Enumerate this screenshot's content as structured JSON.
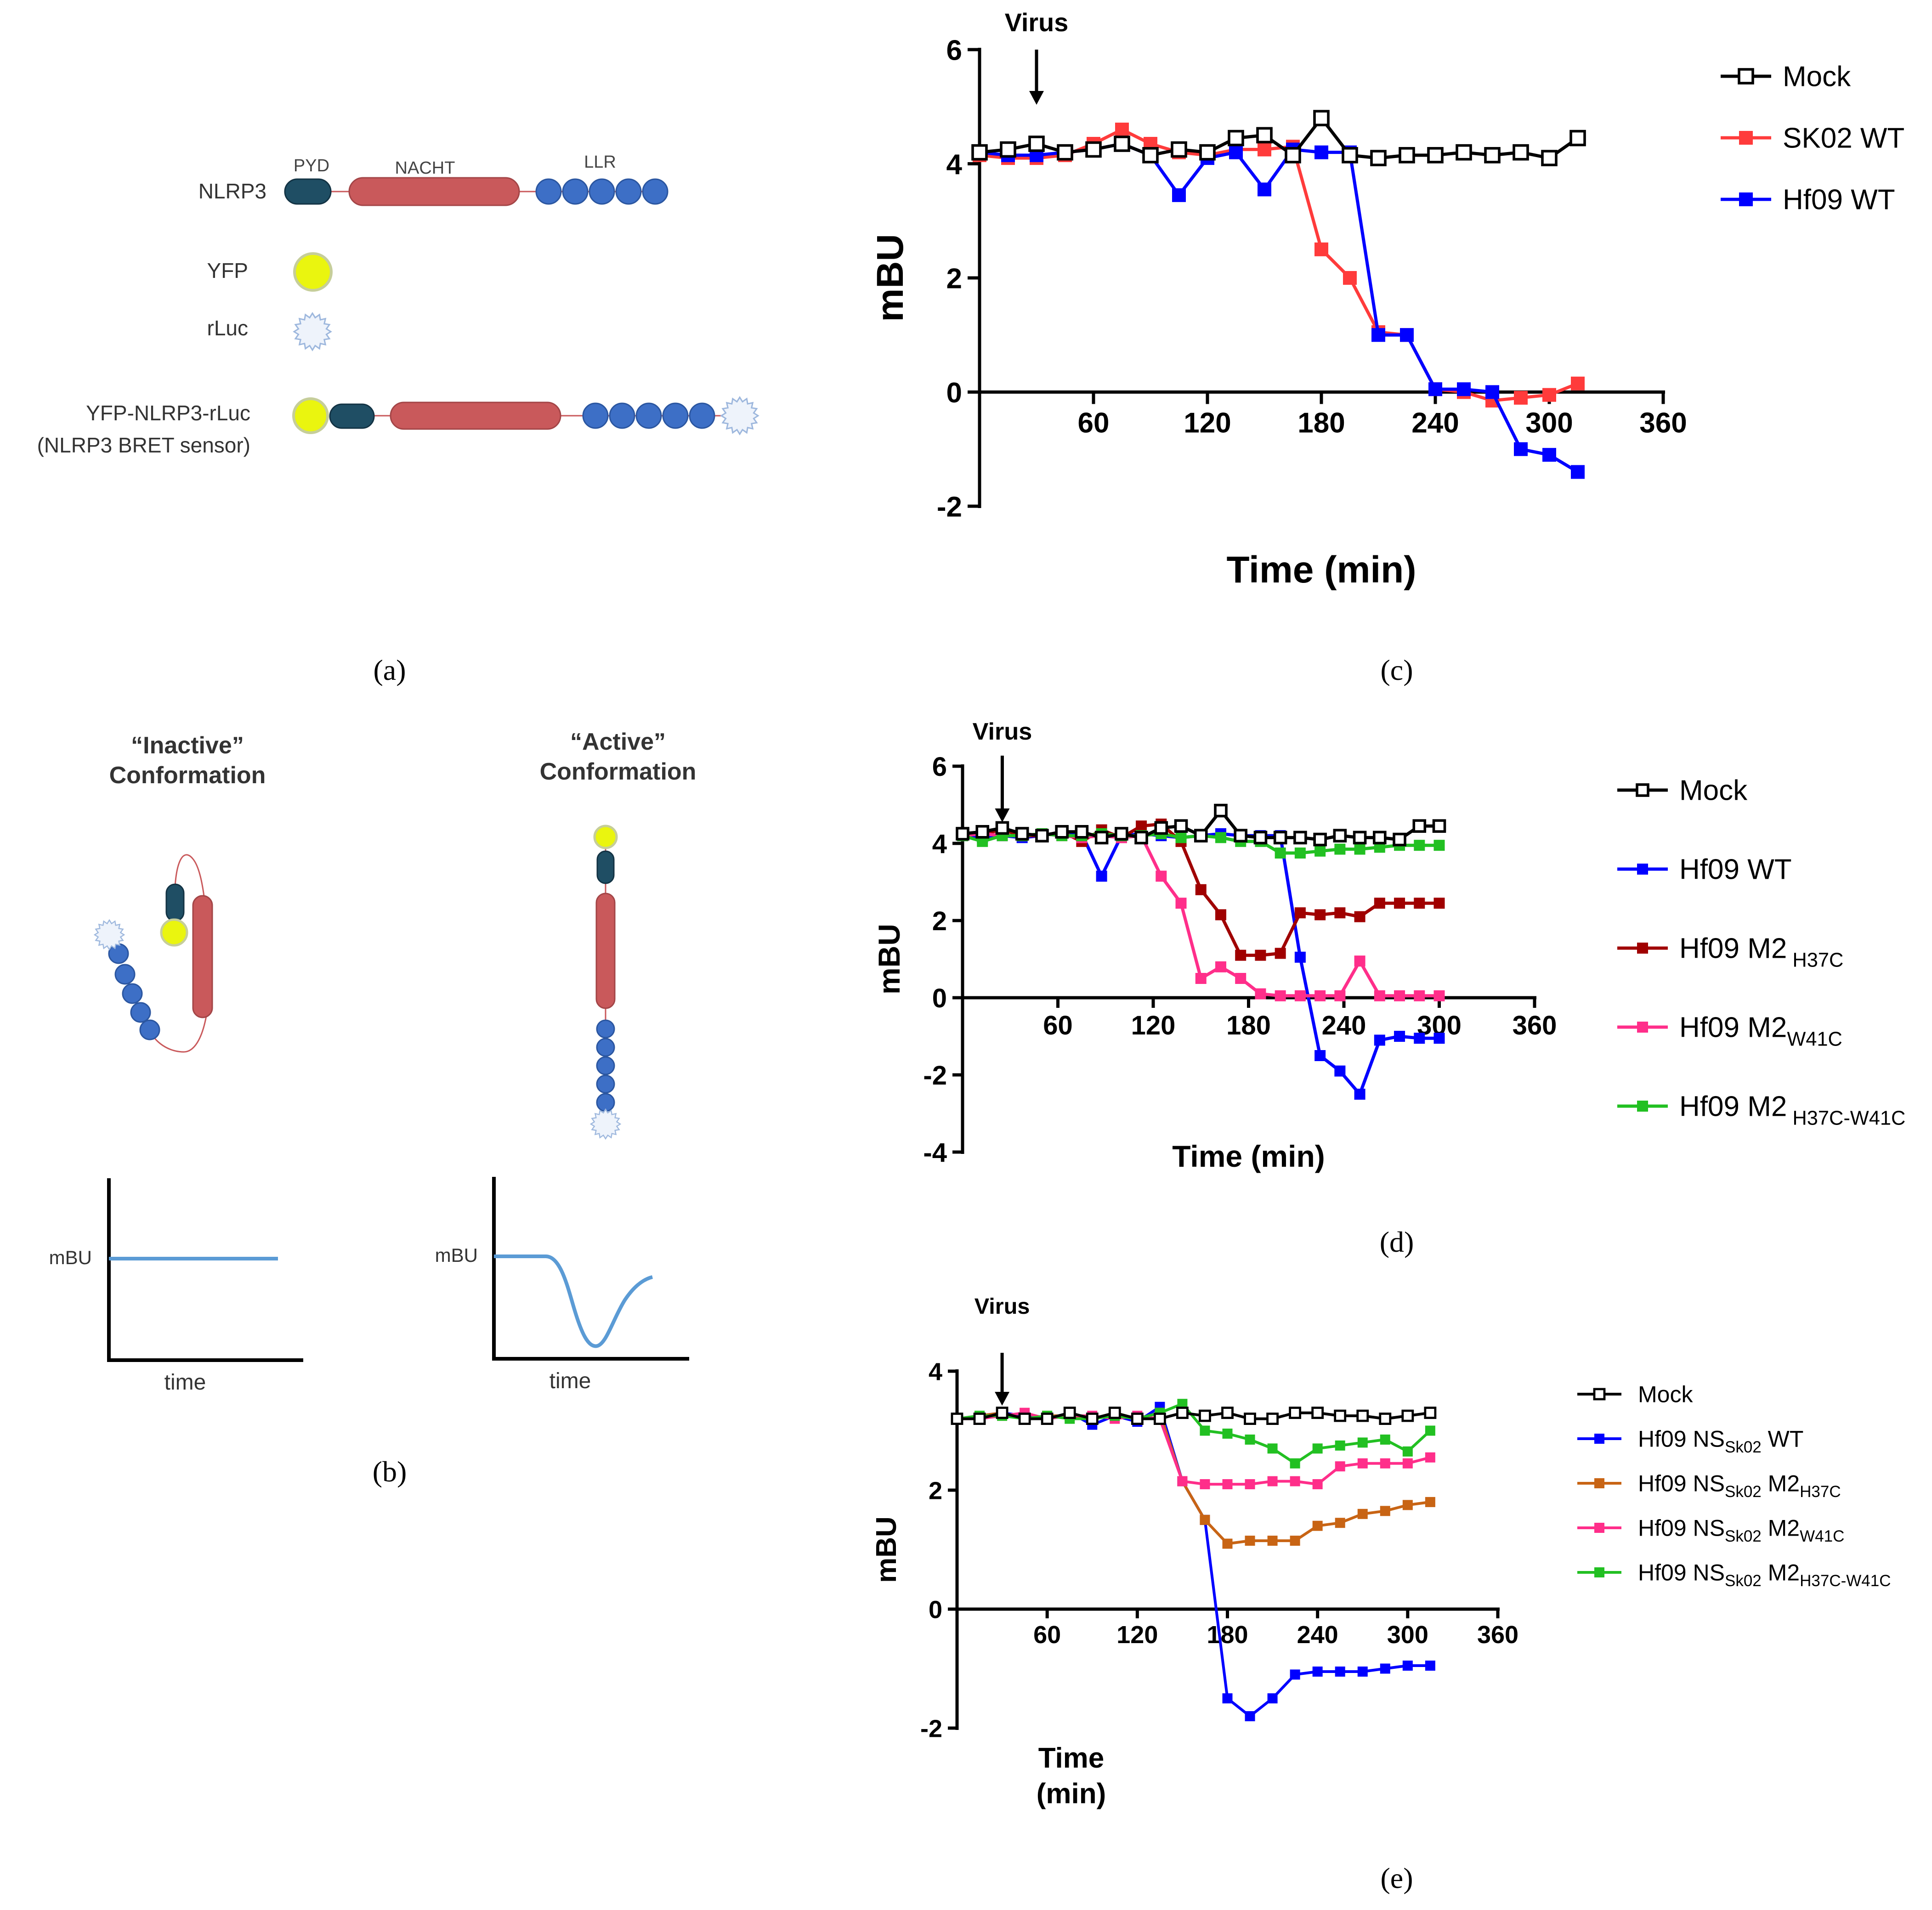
{
  "panels": {
    "a": {
      "caption": "(a)",
      "domain_labels": [
        "PYD",
        "NACHT",
        "LLR"
      ],
      "rows": [
        "NLRP3",
        "YFP",
        "rLuc",
        "YFP-NLRP3-rLuc",
        "(NLRP3 BRET sensor)"
      ],
      "colors": {
        "pyd": "#1f4e64",
        "nacht": "#c9595b",
        "llr": "#3d6fc6",
        "yfp": "#eaf50f",
        "rluc": "#c9d8ee"
      }
    },
    "b": {
      "caption": "(b)",
      "inactive_title": [
        "“Inactive”",
        "Conformation"
      ],
      "active_title": [
        "“Active”",
        "Conformation"
      ],
      "inset_ylabel": "mBU",
      "inset_xlabel": "time",
      "trace_color": "#5b9bd5"
    }
  },
  "chart_data": [
    {
      "id": "c",
      "type": "line",
      "caption": "(c)",
      "annotation": "Virus",
      "annotation_x": 30,
      "xlabel": "Time (min)",
      "ylabel": "mBU",
      "xlim": [
        0,
        360
      ],
      "ylim": [
        -2,
        6
      ],
      "xticks": [
        60,
        120,
        180,
        240,
        300,
        360
      ],
      "yticks": [
        -2,
        0,
        2,
        4,
        6
      ],
      "x": [
        0,
        15,
        30,
        45,
        60,
        75,
        90,
        105,
        120,
        135,
        150,
        165,
        180,
        195,
        210,
        225,
        240,
        255,
        270,
        285,
        300,
        315
      ],
      "series": [
        {
          "name": "Mock",
          "color": "#000000",
          "marker": "open",
          "values": [
            4.2,
            4.25,
            4.35,
            4.2,
            4.25,
            4.35,
            4.15,
            4.25,
            4.2,
            4.45,
            4.5,
            4.15,
            4.8,
            4.15,
            4.1,
            4.15,
            4.15,
            4.2,
            4.15,
            4.2,
            4.1,
            4.45
          ]
        },
        {
          "name": "SK02 WT",
          "color": "#ff3b3b",
          "marker": "filled",
          "values": [
            4.15,
            4.1,
            4.1,
            4.15,
            4.35,
            4.6,
            4.35,
            4.2,
            4.15,
            4.25,
            4.25,
            4.3,
            2.5,
            2.0,
            1.05,
            1.0,
            0.05,
            0.0,
            -0.15,
            -0.1,
            -0.05,
            0.15
          ]
        },
        {
          "name": "Hf09 WT",
          "color": "#0000ff",
          "marker": "filled",
          "values": [
            4.2,
            4.15,
            4.15,
            4.2,
            4.25,
            4.35,
            4.15,
            3.45,
            4.1,
            4.2,
            3.55,
            4.25,
            4.2,
            4.2,
            1.0,
            1.0,
            0.05,
            0.05,
            0.0,
            -1.0,
            -1.1,
            -1.4
          ]
        }
      ]
    },
    {
      "id": "d",
      "type": "line",
      "caption": "(d)",
      "annotation": "Virus",
      "annotation_x": 25,
      "xlabel": "Time (min)",
      "ylabel": "mBU",
      "xlim": [
        0,
        360
      ],
      "ylim": [
        -4,
        6
      ],
      "xticks": [
        60,
        120,
        180,
        240,
        300,
        360
      ],
      "yticks": [
        -4,
        -2,
        0,
        2,
        4,
        6
      ],
      "x": [
        0,
        12.5,
        25,
        37.5,
        50,
        62.5,
        75,
        87.5,
        100,
        112.5,
        125,
        137.5,
        150,
        162.5,
        175,
        187.5,
        200,
        212.5,
        225,
        237.5,
        250,
        262.5,
        275,
        287.5,
        300
      ],
      "series": [
        {
          "name": "Mock",
          "color": "#000000",
          "marker": "open",
          "values": [
            4.25,
            4.3,
            4.4,
            4.25,
            4.2,
            4.3,
            4.3,
            4.15,
            4.25,
            4.15,
            4.4,
            4.45,
            4.2,
            4.85,
            4.2,
            4.15,
            4.15,
            4.15,
            4.1,
            4.2,
            4.15,
            4.15,
            4.1,
            4.45,
            4.45
          ]
        },
        {
          "name": "Hf09 WT",
          "color": "#0000ff",
          "marker": "filled",
          "values": [
            4.2,
            4.15,
            4.2,
            4.15,
            4.2,
            4.3,
            4.25,
            3.15,
            4.2,
            4.25,
            4.2,
            4.15,
            4.2,
            4.25,
            4.2,
            4.2,
            4.2,
            1.05,
            -1.5,
            -1.9,
            -2.5,
            -1.1,
            -1.0,
            -1.05,
            -1.05
          ]
        },
        {
          "name": "Hf09 M2 H37C",
          "name_main": "Hf09 M2",
          "name_sub": " H37C",
          "color": "#a00000",
          "marker": "filled",
          "values": [
            4.25,
            4.25,
            4.35,
            4.2,
            4.2,
            4.3,
            4.05,
            4.35,
            4.15,
            4.45,
            4.5,
            4.05,
            2.8,
            2.15,
            1.1,
            1.1,
            1.15,
            2.2,
            2.15,
            2.2,
            2.1,
            2.45,
            2.45,
            2.45,
            2.45
          ]
        },
        {
          "name": "Hf09 M2W41C",
          "name_main": "Hf09 M2",
          "name_sub": "W41C",
          "color": "#ff2e8a",
          "marker": "filled",
          "values": [
            4.2,
            4.25,
            4.2,
            4.2,
            4.25,
            4.2,
            4.15,
            4.2,
            4.15,
            4.2,
            3.15,
            2.45,
            0.5,
            0.8,
            0.5,
            0.1,
            0.05,
            0.05,
            0.05,
            0.05,
            0.95,
            0.05,
            0.05,
            0.05,
            0.05
          ]
        },
        {
          "name": "Hf09 M2 H37C-W41C",
          "name_main": "Hf09 M2",
          "name_sub": " H37C-W41C",
          "color": "#22c022",
          "marker": "filled",
          "values": [
            4.2,
            4.05,
            4.2,
            4.2,
            4.25,
            4.2,
            4.2,
            4.25,
            4.2,
            4.2,
            4.25,
            4.15,
            4.2,
            4.15,
            4.05,
            4.05,
            3.75,
            3.75,
            3.8,
            3.85,
            3.85,
            3.9,
            3.95,
            3.95,
            3.95
          ]
        }
      ]
    },
    {
      "id": "e",
      "type": "line",
      "caption": "(e)",
      "annotation": "Virus",
      "annotation_x": 30,
      "xlabel": [
        "Time",
        "(min)"
      ],
      "ylabel": "mBU",
      "xlim": [
        0,
        360
      ],
      "ylim": [
        -2,
        4
      ],
      "xticks": [
        60,
        120,
        180,
        240,
        300,
        360
      ],
      "yticks": [
        -2,
        0,
        2,
        4
      ],
      "x": [
        0,
        15,
        30,
        45,
        60,
        75,
        90,
        105,
        120,
        135,
        150,
        165,
        180,
        195,
        210,
        225,
        240,
        255,
        270,
        285,
        300,
        315
      ],
      "series": [
        {
          "name": "Mock",
          "color": "#000000",
          "marker": "open",
          "values": [
            3.2,
            3.2,
            3.3,
            3.2,
            3.2,
            3.3,
            3.2,
            3.3,
            3.2,
            3.2,
            3.3,
            3.25,
            3.3,
            3.2,
            3.2,
            3.3,
            3.3,
            3.25,
            3.25,
            3.2,
            3.25,
            3.3
          ]
        },
        {
          "name": "Hf09 NSSk02 WT",
          "parts": [
            "Hf09 NS",
            "Sk02",
            " WT",
            ""
          ],
          "color": "#0000ff",
          "marker": "filled",
          "values": [
            3.2,
            3.25,
            3.3,
            3.25,
            3.2,
            3.3,
            3.1,
            3.25,
            3.15,
            3.4,
            2.15,
            1.5,
            -1.5,
            -1.8,
            -1.5,
            -1.1,
            -1.05,
            -1.05,
            -1.05,
            -1.0,
            -0.95,
            -0.95
          ]
        },
        {
          "name": "Hf09 NSSk02 M2H37C",
          "parts": [
            "Hf09 NS",
            "Sk02",
            " M2",
            "H37C"
          ],
          "color": "#c86414",
          "marker": "filled",
          "values": [
            3.2,
            3.25,
            3.3,
            3.2,
            3.25,
            3.25,
            3.2,
            3.3,
            3.2,
            3.3,
            2.15,
            1.5,
            1.1,
            1.15,
            1.15,
            1.15,
            1.4,
            1.45,
            1.6,
            1.65,
            1.75,
            1.8
          ]
        },
        {
          "name": "Hf09 NSSk02 M2W41C",
          "parts": [
            "Hf09 NS",
            "Sk02",
            " M2",
            "W41C"
          ],
          "color": "#ff2e8a",
          "marker": "filled",
          "values": [
            3.2,
            3.2,
            3.25,
            3.3,
            3.2,
            3.25,
            3.25,
            3.2,
            3.25,
            3.2,
            2.15,
            2.1,
            2.1,
            2.1,
            2.15,
            2.15,
            2.1,
            2.4,
            2.45,
            2.45,
            2.45,
            2.55
          ]
        },
        {
          "name": "Hf09 NSSk02 M2H37C-W41C",
          "parts": [
            "Hf09 NS",
            "Sk02",
            " M2",
            "H37C-W41C"
          ],
          "color": "#22c022",
          "marker": "filled",
          "values": [
            3.2,
            3.25,
            3.25,
            3.2,
            3.25,
            3.2,
            3.2,
            3.25,
            3.2,
            3.3,
            3.45,
            3.0,
            2.95,
            2.85,
            2.7,
            2.45,
            2.7,
            2.75,
            2.8,
            2.85,
            2.65,
            3.0
          ]
        }
      ]
    }
  ]
}
